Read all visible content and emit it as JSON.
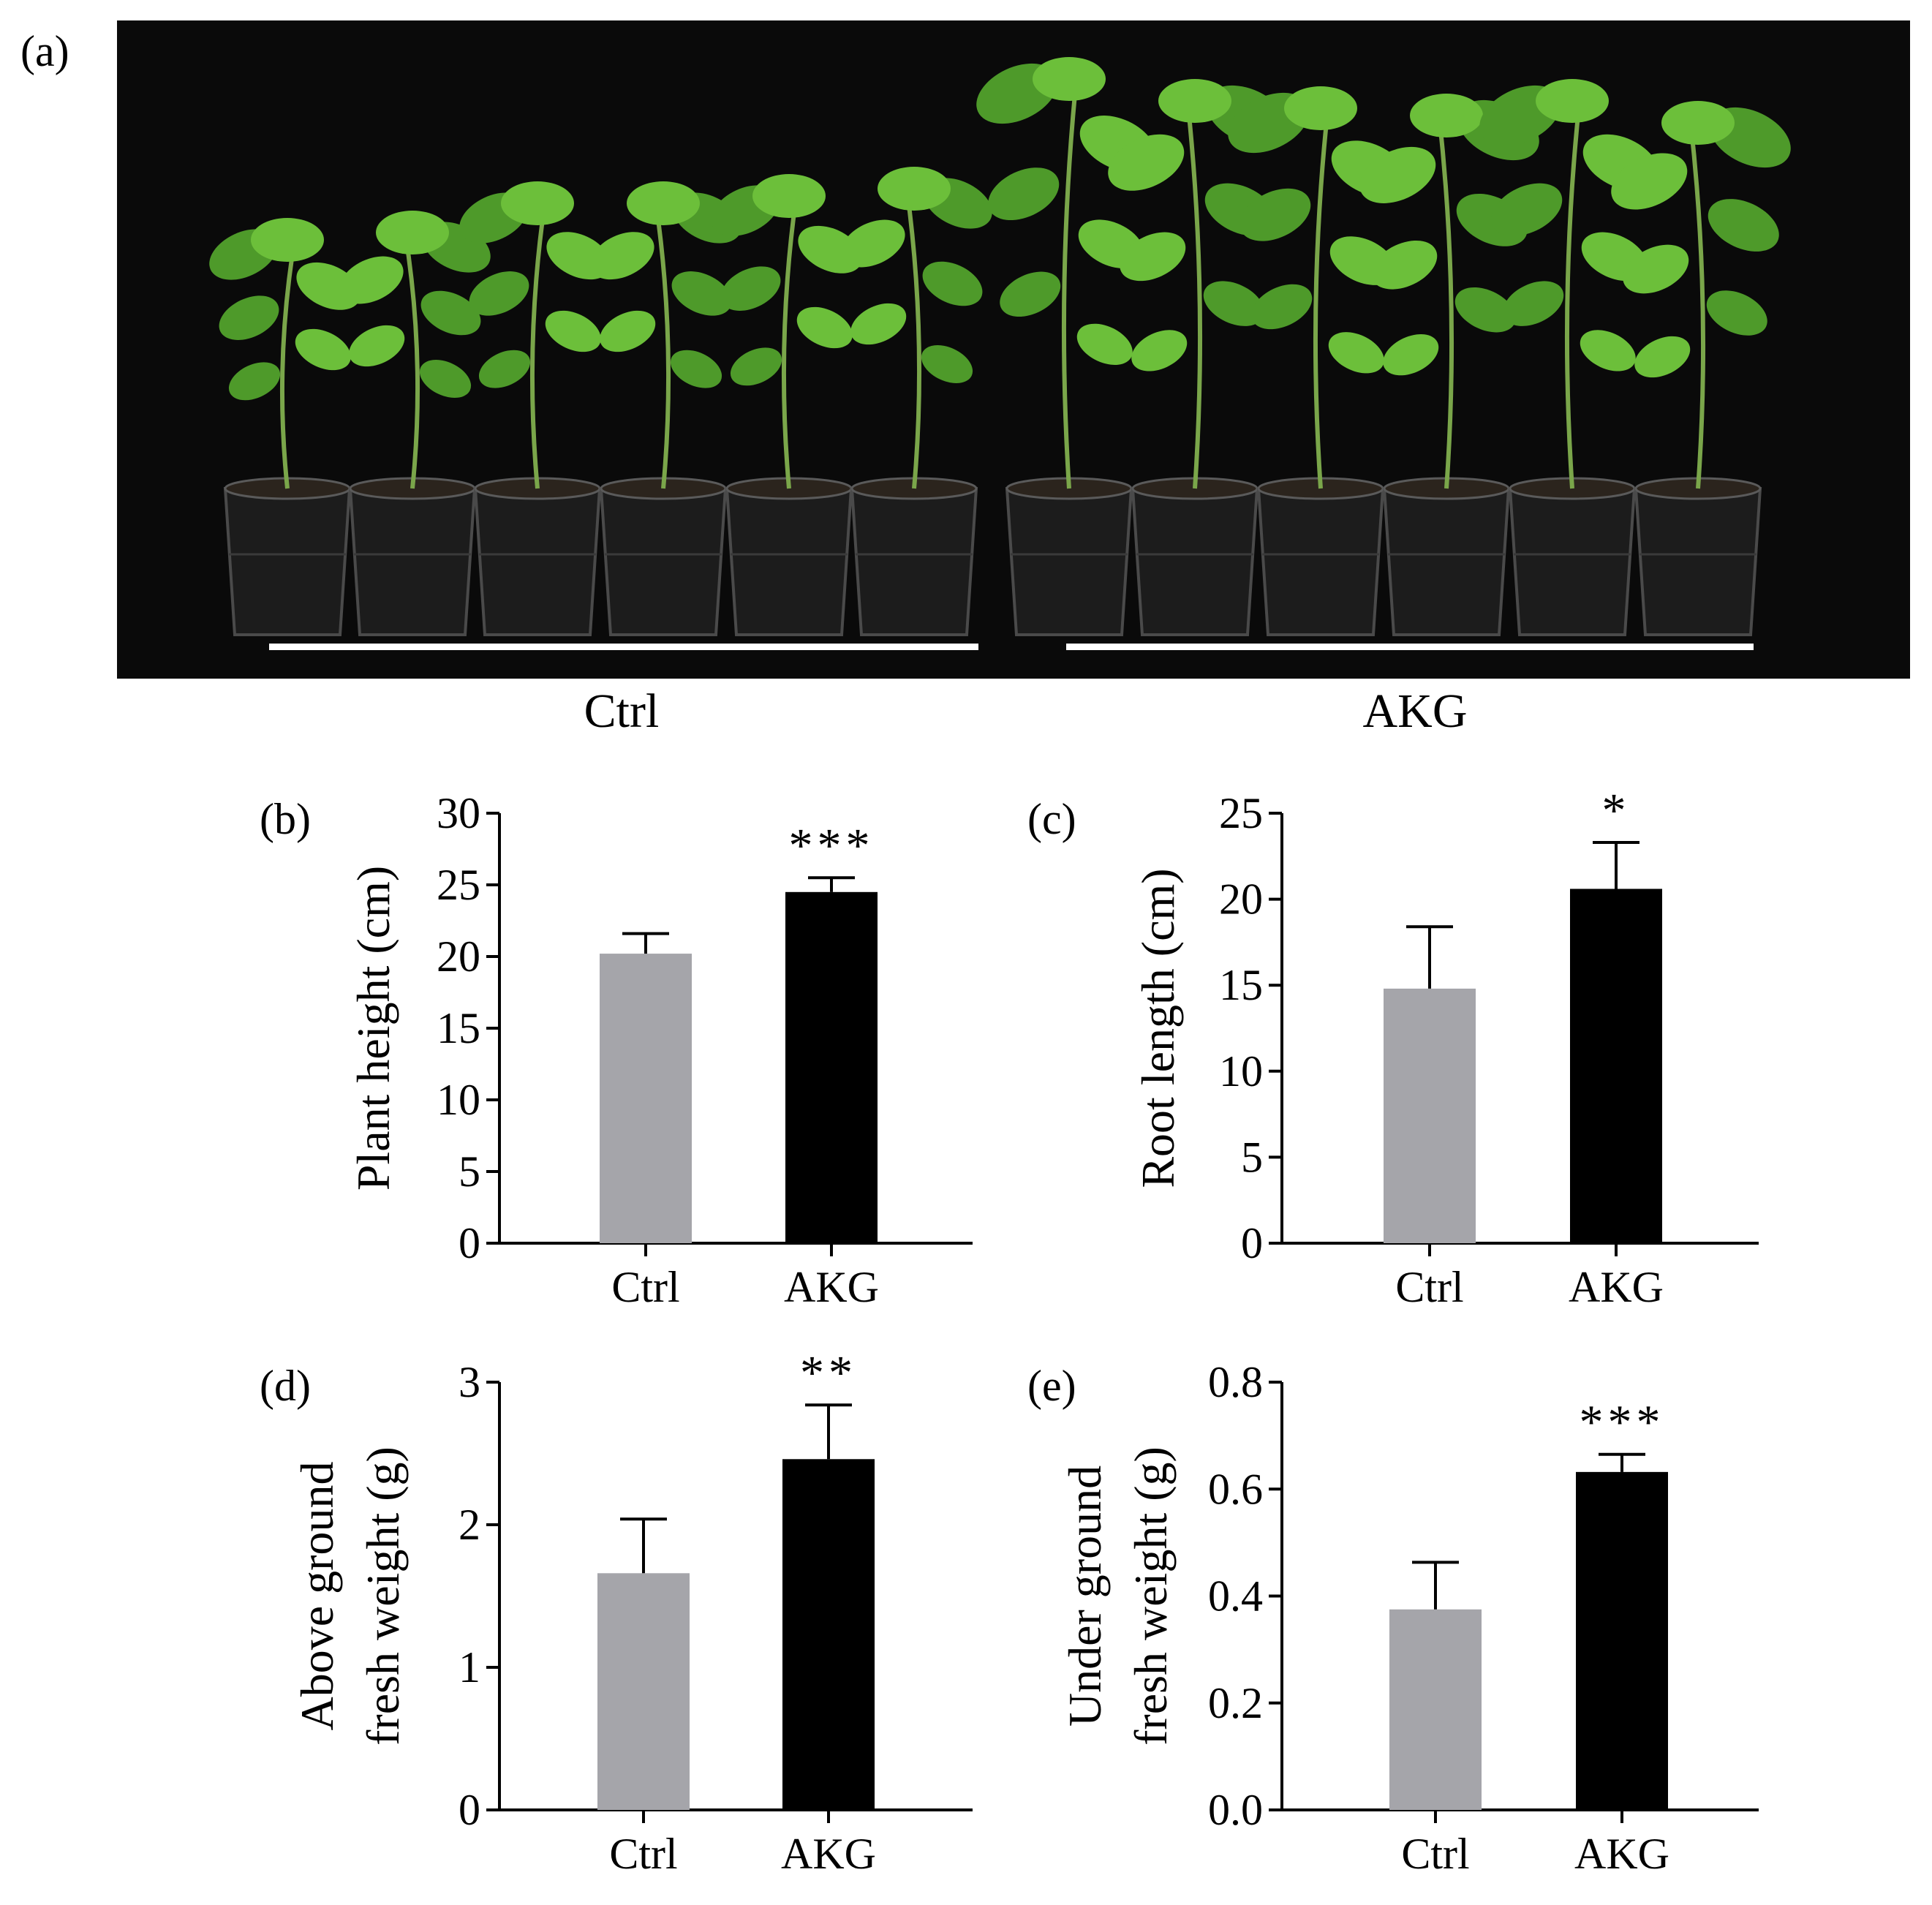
{
  "figure": {
    "panel_a": {
      "label": "(a)",
      "groups": [
        {
          "name": "Ctrl",
          "plant_count": 6
        },
        {
          "name": "AKG",
          "plant_count": 6
        }
      ]
    },
    "colors": {
      "ctrl": "#a5a5aa",
      "akg": "#000000",
      "photo_background": "#0a0a0a",
      "leaf": "#6cbf3a",
      "leaf_dark": "#4e9a2a",
      "pot": "#1c1c1c",
      "bracket": "#ffffff"
    }
  },
  "chart_data": [
    {
      "type": "bar",
      "panel_label": "(b)",
      "categories": [
        "Ctrl",
        "AKG"
      ],
      "values": [
        20.2,
        24.5
      ],
      "errors": [
        1.4,
        1.0
      ],
      "significance": "***",
      "ylabel_lines": [
        "Plant height (cm)"
      ],
      "ylim": [
        0,
        30
      ],
      "yticks": [
        0,
        5,
        10,
        15,
        20,
        25,
        30
      ],
      "ytick_labels": [
        "0",
        "5",
        "10",
        "15",
        "20",
        "25",
        "30"
      ]
    },
    {
      "type": "bar",
      "panel_label": "(c)",
      "categories": [
        "Ctrl",
        "AKG"
      ],
      "values": [
        14.8,
        20.6
      ],
      "errors": [
        3.6,
        2.7
      ],
      "significance": "*",
      "ylabel_lines": [
        "Root length (cm)"
      ],
      "ylim": [
        0,
        25
      ],
      "yticks": [
        0,
        5,
        10,
        15,
        20,
        25
      ],
      "ytick_labels": [
        "0",
        "5",
        "10",
        "15",
        "20",
        "25"
      ]
    },
    {
      "type": "bar",
      "panel_label": "(d)",
      "categories": [
        "Ctrl",
        "AKG"
      ],
      "values": [
        1.66,
        2.46
      ],
      "errors": [
        0.38,
        0.38
      ],
      "significance": "**",
      "ylabel_lines": [
        "Above ground",
        "fresh weight (g)"
      ],
      "ylim": [
        0,
        3
      ],
      "yticks": [
        0,
        1,
        2,
        3
      ],
      "ytick_labels": [
        "0",
        "1",
        "2",
        "3"
      ]
    },
    {
      "type": "bar",
      "panel_label": "(e)",
      "categories": [
        "Ctrl",
        "AKG"
      ],
      "values": [
        0.375,
        0.632
      ],
      "errors": [
        0.088,
        0.033
      ],
      "significance": "***",
      "ylabel_lines": [
        "Under ground",
        "fresh weight (g)"
      ],
      "ylim": [
        0,
        0.8
      ],
      "yticks": [
        0,
        0.2,
        0.4,
        0.6,
        0.8
      ],
      "ytick_labels": [
        "0.0",
        "0.2",
        "0.4",
        "0.6",
        "0.8"
      ]
    }
  ]
}
